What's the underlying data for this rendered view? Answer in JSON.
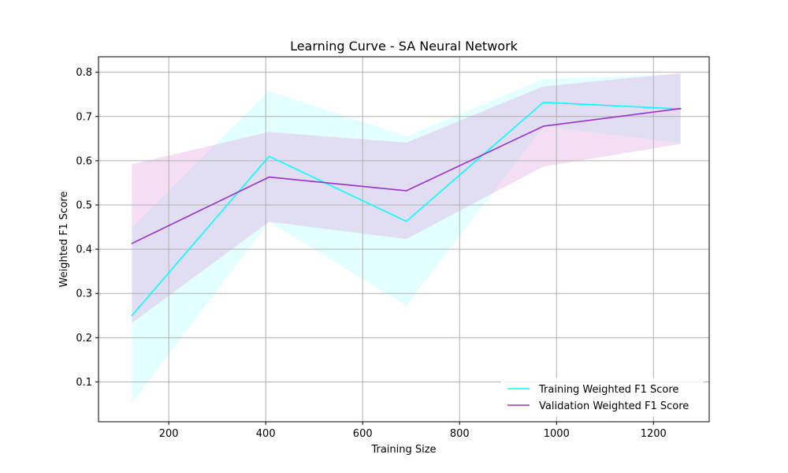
{
  "chart_data": {
    "type": "line",
    "title": "Learning Curve - SA Neural Network",
    "xlabel": "Training Size",
    "ylabel": "Weighted F1 Score",
    "xlim": [
      55,
      1315
    ],
    "ylim": [
      0.01,
      0.835
    ],
    "xticks": [
      200,
      400,
      600,
      800,
      1000,
      1200
    ],
    "yticks": [
      0.1,
      0.2,
      0.3,
      0.4,
      0.5,
      0.6,
      0.7,
      0.8
    ],
    "xtick_labels": [
      "200",
      "400",
      "600",
      "800",
      "1000",
      "1200"
    ],
    "ytick_labels": [
      "0.1",
      "0.2",
      "0.3",
      "0.4",
      "0.5",
      "0.6",
      "0.7",
      "0.8"
    ],
    "grid": true,
    "legend_position": "lower-right",
    "x": [
      124,
      407,
      690,
      973,
      1256
    ],
    "series": [
      {
        "name": "Training Weighted F1 Score",
        "color": "#00FFFF",
        "band_color": "#E0FFFF",
        "values": [
          0.25,
          0.61,
          0.463,
          0.732,
          0.717
        ],
        "lower": [
          0.052,
          0.462,
          0.272,
          0.678,
          0.64
        ],
        "upper": [
          0.448,
          0.758,
          0.655,
          0.785,
          0.795
        ]
      },
      {
        "name": "Validation Weighted F1 Score",
        "color": "#9932CC",
        "band_color": "#DDA0DD",
        "values": [
          0.413,
          0.563,
          0.532,
          0.678,
          0.718
        ],
        "lower": [
          0.233,
          0.462,
          0.423,
          0.587,
          0.638
        ],
        "upper": [
          0.592,
          0.665,
          0.641,
          0.768,
          0.798
        ]
      }
    ]
  }
}
